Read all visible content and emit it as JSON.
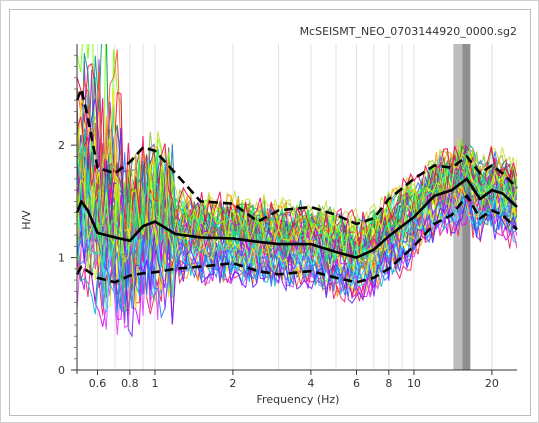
{
  "chart_data": {
    "type": "line",
    "title": "McSEISMT_NEO_0703144920_0000.sg2",
    "xlabel": "Frequency (Hz)",
    "ylabel": "H/V",
    "xscale": "log",
    "xlim": [
      0.5,
      25
    ],
    "ylim": [
      0,
      2.9
    ],
    "x_ticks": [
      0.6,
      0.8,
      1,
      2,
      4,
      6,
      8,
      10,
      20
    ],
    "x_tick_labels": [
      "0.6",
      "0.8",
      "1",
      "2",
      "4",
      "6",
      "8",
      "10",
      "20"
    ],
    "y_ticks": [
      0,
      1,
      2
    ],
    "y_tick_labels": [
      "0",
      "1",
      "2"
    ],
    "grid": "vertical",
    "peak_band": {
      "x_min": 14.2,
      "x_max": 16.5,
      "x_min_inner": 15.4,
      "colors": [
        "#bdbdbd",
        "#8f8f8f"
      ]
    },
    "series": [
      {
        "style": "solid",
        "color": "#000000",
        "x": [
          0.5,
          0.52,
          0.55,
          0.6,
          0.7,
          0.8,
          0.9,
          1.0,
          1.2,
          1.5,
          2,
          2.5,
          3,
          4,
          5,
          6,
          7,
          8,
          10,
          12,
          14,
          16,
          18,
          20,
          22,
          25
        ],
        "values": [
          1.4,
          1.5,
          1.42,
          1.22,
          1.18,
          1.15,
          1.28,
          1.32,
          1.21,
          1.18,
          1.17,
          1.14,
          1.12,
          1.12,
          1.05,
          1.0,
          1.07,
          1.19,
          1.36,
          1.55,
          1.6,
          1.7,
          1.52,
          1.6,
          1.57,
          1.45
        ]
      },
      {
        "style": "dashed",
        "color": "#000000",
        "x": [
          0.5,
          0.52,
          0.55,
          0.6,
          0.7,
          0.8,
          0.9,
          1.0,
          1.2,
          1.5,
          2,
          2.5,
          3,
          4,
          5,
          6,
          7,
          8,
          10,
          12,
          14,
          16,
          18,
          20,
          22,
          25
        ],
        "values": [
          2.4,
          2.5,
          2.25,
          1.8,
          1.75,
          1.85,
          1.98,
          1.95,
          1.75,
          1.5,
          1.48,
          1.32,
          1.42,
          1.45,
          1.38,
          1.3,
          1.35,
          1.52,
          1.7,
          1.82,
          1.8,
          1.9,
          1.75,
          1.82,
          1.75,
          1.62
        ]
      },
      {
        "style": "dashed",
        "color": "#000000",
        "x": [
          0.5,
          0.52,
          0.55,
          0.6,
          0.7,
          0.8,
          0.9,
          1.0,
          1.2,
          1.5,
          2,
          2.5,
          3,
          4,
          5,
          6,
          7,
          8,
          10,
          12,
          14,
          16,
          18,
          20,
          22,
          25
        ],
        "values": [
          0.85,
          0.92,
          0.88,
          0.82,
          0.78,
          0.84,
          0.86,
          0.87,
          0.9,
          0.92,
          0.95,
          0.88,
          0.85,
          0.88,
          0.82,
          0.78,
          0.82,
          0.9,
          1.1,
          1.3,
          1.38,
          1.55,
          1.35,
          1.42,
          1.38,
          1.25
        ]
      }
    ],
    "window_curves": {
      "count": 48,
      "colors": [
        "#e91e63",
        "#9c27b0",
        "#673ab7",
        "#3f51b5",
        "#2196f3",
        "#00bcd4",
        "#009688",
        "#4caf50",
        "#8bc34a",
        "#cddc39",
        "#ff9800",
        "#ff5722",
        "#795548",
        "#e040fb",
        "#18ffff",
        "#76ff03",
        "#ffea00",
        "#d500f9",
        "#2979ff",
        "#00e676",
        "#f50057",
        "#651fff",
        "#1de9b6",
        "#c6ff00"
      ]
    }
  }
}
